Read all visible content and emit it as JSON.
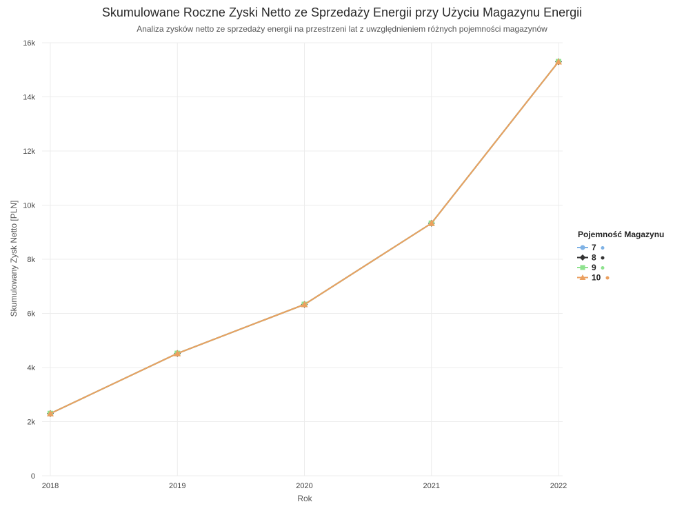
{
  "chart_data": {
    "type": "line",
    "title": "Skumulowane Roczne Zyski Netto ze Sprzedaży Energii przy Użyciu Magazynu Energii",
    "subtitle": "Analiza zysków netto ze sprzedaży energii na przestrzeni lat z uwzględnieniem różnych pojemności magazynów",
    "xlabel": "Rok",
    "ylabel": "Skumulowany Zysk Netto [PLN]",
    "x": [
      2018,
      2019,
      2020,
      2021,
      2022
    ],
    "x_tick_labels": [
      "2018",
      "2019",
      "2020",
      "2021",
      "2022"
    ],
    "ylim": [
      0,
      16000
    ],
    "y_ticks": [
      0,
      2000,
      4000,
      6000,
      8000,
      10000,
      12000,
      14000,
      16000
    ],
    "y_tick_labels": [
      "0",
      "2k",
      "4k",
      "6k",
      "8k",
      "10k",
      "12k",
      "14k",
      "16k"
    ],
    "grid": true,
    "legend": {
      "title": "Pojemność Magazynu",
      "position": "right"
    },
    "series": [
      {
        "name": "7",
        "color": "#7fb2e5",
        "marker": "circle",
        "values": [
          2300,
          4520,
          6330,
          9330,
          15300
        ]
      },
      {
        "name": "8",
        "color": "#333333",
        "marker": "diamond",
        "values": [
          2300,
          4520,
          6330,
          9330,
          15300
        ]
      },
      {
        "name": "9",
        "color": "#8ee28e",
        "marker": "square",
        "values": [
          2300,
          4520,
          6330,
          9330,
          15300
        ]
      },
      {
        "name": "10",
        "color": "#eba060",
        "marker": "triangle",
        "values": [
          2300,
          4520,
          6330,
          9330,
          15300
        ]
      }
    ]
  }
}
